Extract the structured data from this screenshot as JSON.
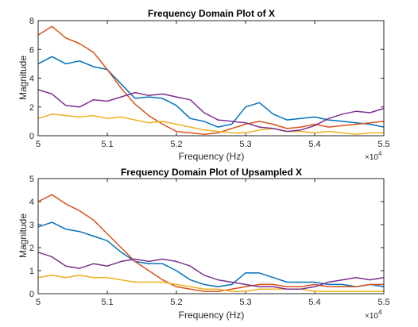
{
  "chart_data": [
    {
      "type": "line",
      "title": "Frequency Domain Plot of X",
      "xlabel": "Frequency (Hz)",
      "ylabel": "Magnitude",
      "xlim": [
        5.0,
        5.5
      ],
      "ylim": [
        0,
        8
      ],
      "x_ticks": [
        "5",
        "5.1",
        "5.2",
        "5.3",
        "5.4",
        "5.5"
      ],
      "y_ticks": [
        "0",
        "2",
        "4",
        "6",
        "8"
      ],
      "x_exponent_label": "×10",
      "x_exponent_power": "4",
      "grid": false,
      "series": [
        {
          "color": "#0072BD",
          "x": [
            5.0,
            5.02,
            5.04,
            5.06,
            5.08,
            5.1,
            5.12,
            5.14,
            5.16,
            5.18,
            5.2,
            5.22,
            5.24,
            5.26,
            5.28,
            5.3,
            5.32,
            5.34,
            5.36,
            5.38,
            5.4,
            5.42,
            5.44,
            5.46,
            5.48,
            5.5
          ],
          "values": [
            5.0,
            5.5,
            5.0,
            5.2,
            4.8,
            4.6,
            3.6,
            2.6,
            2.7,
            2.6,
            2.1,
            1.2,
            1.0,
            0.6,
            0.8,
            2.0,
            2.3,
            1.5,
            1.1,
            1.2,
            1.3,
            1.1,
            1.0,
            0.9,
            0.8,
            0.6
          ]
        },
        {
          "color": "#D95319",
          "x": [
            5.0,
            5.02,
            5.04,
            5.06,
            5.08,
            5.1,
            5.12,
            5.14,
            5.16,
            5.18,
            5.2,
            5.22,
            5.24,
            5.26,
            5.28,
            5.3,
            5.32,
            5.34,
            5.36,
            5.38,
            5.4,
            5.42,
            5.44,
            5.46,
            5.48,
            5.5
          ],
          "values": [
            7.0,
            7.6,
            6.8,
            6.4,
            5.8,
            4.6,
            3.3,
            2.2,
            1.4,
            0.8,
            0.3,
            0.2,
            0.1,
            0.2,
            0.5,
            0.8,
            1.0,
            0.8,
            0.5,
            0.6,
            0.8,
            0.6,
            0.7,
            0.8,
            0.9,
            1.0
          ]
        },
        {
          "color": "#EDB120",
          "x": [
            5.0,
            5.02,
            5.04,
            5.06,
            5.08,
            5.1,
            5.12,
            5.14,
            5.16,
            5.18,
            5.2,
            5.22,
            5.24,
            5.26,
            5.28,
            5.3,
            5.32,
            5.34,
            5.36,
            5.38,
            5.4,
            5.42,
            5.44,
            5.46,
            5.48,
            5.5
          ],
          "values": [
            1.2,
            1.5,
            1.4,
            1.3,
            1.4,
            1.2,
            1.3,
            1.1,
            0.9,
            1.0,
            0.8,
            0.6,
            0.4,
            0.3,
            0.2,
            0.2,
            0.4,
            0.5,
            0.3,
            0.3,
            0.2,
            0.3,
            0.2,
            0.1,
            0.2,
            0.2
          ]
        },
        {
          "color": "#7E2F8E",
          "x": [
            5.0,
            5.02,
            5.04,
            5.06,
            5.08,
            5.1,
            5.12,
            5.14,
            5.16,
            5.18,
            5.2,
            5.22,
            5.24,
            5.26,
            5.28,
            5.3,
            5.32,
            5.34,
            5.36,
            5.38,
            5.4,
            5.42,
            5.44,
            5.46,
            5.48,
            5.5
          ],
          "values": [
            3.2,
            2.9,
            2.1,
            2.0,
            2.5,
            2.4,
            2.7,
            3.0,
            2.8,
            2.9,
            2.7,
            2.5,
            1.6,
            1.1,
            1.0,
            0.9,
            0.6,
            0.5,
            0.3,
            0.4,
            0.7,
            1.2,
            1.5,
            1.7,
            1.6,
            1.9
          ]
        }
      ]
    },
    {
      "type": "line",
      "title": "Frequency Domain Plot of Upsampled X",
      "xlabel": "Frequency (Hz)",
      "ylabel": "Magnitude",
      "xlim": [
        5.0,
        5.5
      ],
      "ylim": [
        0,
        5
      ],
      "x_ticks": [
        "5",
        "5.1",
        "5.2",
        "5.3",
        "5.4",
        "5.5"
      ],
      "y_ticks": [
        "0",
        "1",
        "2",
        "3",
        "4",
        "5"
      ],
      "x_exponent_label": "×10",
      "x_exponent_power": "4",
      "grid": false,
      "series": [
        {
          "color": "#0072BD",
          "x": [
            5.0,
            5.02,
            5.04,
            5.06,
            5.08,
            5.1,
            5.12,
            5.14,
            5.16,
            5.18,
            5.2,
            5.22,
            5.24,
            5.26,
            5.28,
            5.3,
            5.32,
            5.34,
            5.36,
            5.38,
            5.4,
            5.42,
            5.44,
            5.46,
            5.48,
            5.5
          ],
          "values": [
            2.9,
            3.1,
            2.8,
            2.7,
            2.5,
            2.3,
            1.8,
            1.4,
            1.3,
            1.3,
            1.0,
            0.6,
            0.4,
            0.3,
            0.4,
            0.9,
            0.9,
            0.7,
            0.5,
            0.5,
            0.5,
            0.4,
            0.4,
            0.3,
            0.4,
            0.3
          ]
        },
        {
          "color": "#D95319",
          "x": [
            5.0,
            5.02,
            5.04,
            5.06,
            5.08,
            5.1,
            5.12,
            5.14,
            5.16,
            5.18,
            5.2,
            5.22,
            5.24,
            5.26,
            5.28,
            5.3,
            5.32,
            5.34,
            5.36,
            5.38,
            5.4,
            5.42,
            5.44,
            5.46,
            5.48,
            5.5
          ],
          "values": [
            4.0,
            4.3,
            3.9,
            3.6,
            3.2,
            2.6,
            2.0,
            1.4,
            1.0,
            0.6,
            0.3,
            0.2,
            0.1,
            0.1,
            0.2,
            0.3,
            0.4,
            0.4,
            0.3,
            0.3,
            0.4,
            0.3,
            0.3,
            0.3,
            0.4,
            0.4
          ]
        },
        {
          "color": "#EDB120",
          "x": [
            5.0,
            5.02,
            5.04,
            5.06,
            5.08,
            5.1,
            5.12,
            5.14,
            5.16,
            5.18,
            5.2,
            5.22,
            5.24,
            5.26,
            5.28,
            5.3,
            5.32,
            5.34,
            5.36,
            5.38,
            5.4,
            5.42,
            5.44,
            5.46,
            5.48,
            5.5
          ],
          "values": [
            0.7,
            0.8,
            0.7,
            0.8,
            0.7,
            0.7,
            0.6,
            0.5,
            0.5,
            0.5,
            0.4,
            0.3,
            0.2,
            0.2,
            0.1,
            0.1,
            0.2,
            0.2,
            0.2,
            0.2,
            0.1,
            0.1,
            0.1,
            0.1,
            0.1,
            0.1
          ]
        },
        {
          "color": "#7E2F8E",
          "x": [
            5.0,
            5.02,
            5.04,
            5.06,
            5.08,
            5.1,
            5.12,
            5.14,
            5.16,
            5.18,
            5.2,
            5.22,
            5.24,
            5.26,
            5.28,
            5.3,
            5.32,
            5.34,
            5.36,
            5.38,
            5.4,
            5.42,
            5.44,
            5.46,
            5.48,
            5.5
          ],
          "values": [
            1.8,
            1.6,
            1.2,
            1.1,
            1.3,
            1.2,
            1.4,
            1.5,
            1.4,
            1.5,
            1.4,
            1.2,
            0.8,
            0.6,
            0.5,
            0.4,
            0.3,
            0.3,
            0.2,
            0.2,
            0.3,
            0.5,
            0.6,
            0.7,
            0.6,
            0.7
          ]
        }
      ]
    }
  ]
}
